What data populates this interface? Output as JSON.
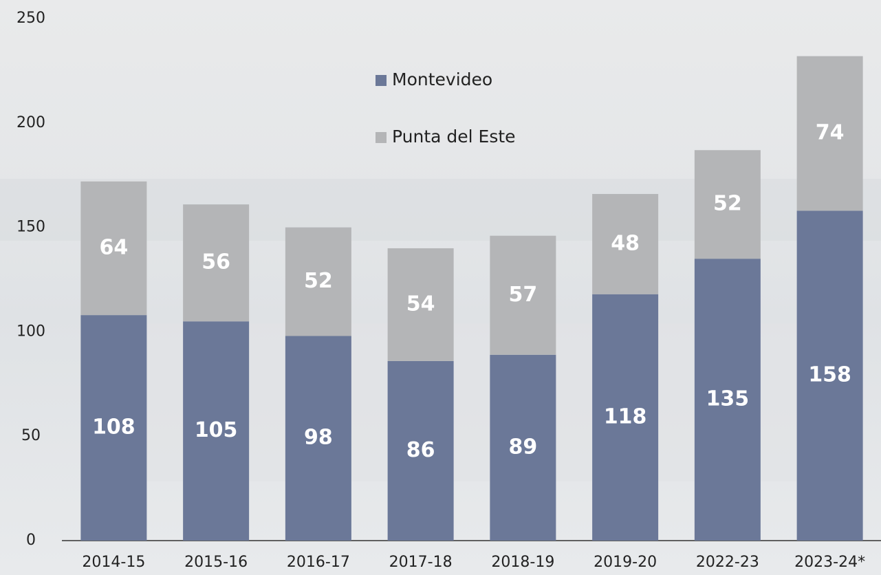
{
  "chart_data": {
    "type": "stacked_bar",
    "categories": [
      "2014-15",
      "2015-16",
      "2016-17",
      "2017-18",
      "2018-19",
      "2019-20",
      "2022-23",
      "2023-24*"
    ],
    "series": [
      {
        "name": "Montevideo",
        "color": "#6b7898",
        "values": [
          108,
          105,
          98,
          86,
          89,
          118,
          135,
          158
        ]
      },
      {
        "name": "Punta del Este",
        "color": "#b4b5b7",
        "values": [
          64,
          56,
          52,
          54,
          57,
          48,
          52,
          74
        ]
      }
    ],
    "ylim": [
      0,
      250
    ],
    "yticks": [
      0,
      50,
      100,
      150,
      200,
      250
    ],
    "grid": false
  }
}
